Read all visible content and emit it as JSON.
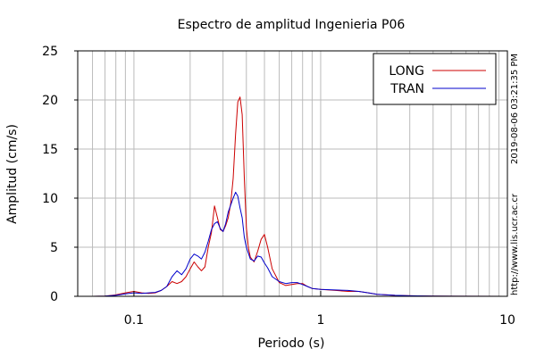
{
  "chart_data": {
    "type": "line",
    "title": "Espectro de amplitud Ingenieria P06",
    "xlabel": "Periodo (s)",
    "ylabel": "Amplitud (cm/s)",
    "x_scale": "log",
    "xlim": [
      0.05,
      10
    ],
    "ylim": [
      0,
      25
    ],
    "x_ticks": [
      {
        "value": 0.1,
        "label": "0.1"
      },
      {
        "value": 1,
        "label": "1"
      },
      {
        "value": 10,
        "label": "10"
      }
    ],
    "y_ticks": [
      {
        "value": 0,
        "label": "0"
      },
      {
        "value": 5,
        "label": "5"
      },
      {
        "value": 10,
        "label": "10"
      },
      {
        "value": 15,
        "label": "15"
      },
      {
        "value": 20,
        "label": "20"
      },
      {
        "value": 25,
        "label": "25"
      }
    ],
    "grid": true,
    "legend_position": "top-right",
    "series": [
      {
        "name": "LONG",
        "color": "#cc0000",
        "points": [
          [
            0.05,
            0
          ],
          [
            0.06,
            0
          ],
          [
            0.07,
            0.02
          ],
          [
            0.08,
            0.15
          ],
          [
            0.09,
            0.35
          ],
          [
            0.1,
            0.5
          ],
          [
            0.11,
            0.35
          ],
          [
            0.12,
            0.3
          ],
          [
            0.13,
            0.35
          ],
          [
            0.14,
            0.6
          ],
          [
            0.15,
            1.0
          ],
          [
            0.16,
            1.5
          ],
          [
            0.17,
            1.3
          ],
          [
            0.18,
            1.5
          ],
          [
            0.19,
            2.0
          ],
          [
            0.2,
            2.8
          ],
          [
            0.21,
            3.5
          ],
          [
            0.22,
            3.0
          ],
          [
            0.23,
            2.6
          ],
          [
            0.24,
            3.0
          ],
          [
            0.25,
            5.0
          ],
          [
            0.26,
            6.5
          ],
          [
            0.27,
            9.2
          ],
          [
            0.28,
            8.0
          ],
          [
            0.29,
            6.8
          ],
          [
            0.3,
            6.6
          ],
          [
            0.31,
            7.2
          ],
          [
            0.32,
            8.0
          ],
          [
            0.33,
            9.5
          ],
          [
            0.34,
            12.0
          ],
          [
            0.35,
            16.5
          ],
          [
            0.36,
            19.8
          ],
          [
            0.37,
            20.3
          ],
          [
            0.38,
            18.5
          ],
          [
            0.39,
            12.0
          ],
          [
            0.4,
            7.0
          ],
          [
            0.41,
            5.0
          ],
          [
            0.42,
            4.0
          ],
          [
            0.44,
            3.5
          ],
          [
            0.46,
            4.6
          ],
          [
            0.48,
            5.8
          ],
          [
            0.5,
            6.3
          ],
          [
            0.52,
            5.0
          ],
          [
            0.55,
            2.8
          ],
          [
            0.6,
            1.4
          ],
          [
            0.65,
            1.1
          ],
          [
            0.7,
            1.2
          ],
          [
            0.75,
            1.3
          ],
          [
            0.8,
            1.3
          ],
          [
            0.85,
            1.0
          ],
          [
            0.9,
            0.8
          ],
          [
            1.0,
            0.7
          ],
          [
            1.2,
            0.6
          ],
          [
            1.4,
            0.5
          ],
          [
            1.6,
            0.5
          ],
          [
            1.8,
            0.35
          ],
          [
            2.0,
            0.2
          ],
          [
            2.5,
            0.1
          ],
          [
            3,
            0.05
          ],
          [
            4,
            0.02
          ],
          [
            10,
            0
          ]
        ]
      },
      {
        "name": "TRAN",
        "color": "#0000cc",
        "points": [
          [
            0.05,
            0
          ],
          [
            0.06,
            0
          ],
          [
            0.07,
            0.02
          ],
          [
            0.08,
            0.1
          ],
          [
            0.09,
            0.25
          ],
          [
            0.1,
            0.35
          ],
          [
            0.11,
            0.3
          ],
          [
            0.12,
            0.35
          ],
          [
            0.13,
            0.4
          ],
          [
            0.14,
            0.6
          ],
          [
            0.15,
            1.0
          ],
          [
            0.16,
            2.0
          ],
          [
            0.17,
            2.6
          ],
          [
            0.18,
            2.2
          ],
          [
            0.19,
            2.8
          ],
          [
            0.2,
            3.8
          ],
          [
            0.21,
            4.3
          ],
          [
            0.22,
            4.1
          ],
          [
            0.23,
            3.8
          ],
          [
            0.24,
            4.5
          ],
          [
            0.25,
            5.6
          ],
          [
            0.26,
            6.8
          ],
          [
            0.27,
            7.4
          ],
          [
            0.28,
            7.6
          ],
          [
            0.29,
            6.9
          ],
          [
            0.3,
            6.6
          ],
          [
            0.31,
            7.4
          ],
          [
            0.32,
            8.6
          ],
          [
            0.33,
            9.3
          ],
          [
            0.34,
            10.0
          ],
          [
            0.35,
            10.6
          ],
          [
            0.36,
            10.2
          ],
          [
            0.37,
            9.0
          ],
          [
            0.38,
            8.0
          ],
          [
            0.39,
            6.0
          ],
          [
            0.4,
            5.0
          ],
          [
            0.42,
            3.8
          ],
          [
            0.44,
            3.6
          ],
          [
            0.46,
            4.1
          ],
          [
            0.48,
            4.0
          ],
          [
            0.5,
            3.4
          ],
          [
            0.52,
            2.9
          ],
          [
            0.55,
            2.0
          ],
          [
            0.6,
            1.5
          ],
          [
            0.65,
            1.3
          ],
          [
            0.7,
            1.4
          ],
          [
            0.75,
            1.4
          ],
          [
            0.8,
            1.2
          ],
          [
            0.85,
            1.0
          ],
          [
            0.9,
            0.8
          ],
          [
            1.0,
            0.7
          ],
          [
            1.2,
            0.65
          ],
          [
            1.4,
            0.6
          ],
          [
            1.6,
            0.5
          ],
          [
            1.8,
            0.35
          ],
          [
            2.0,
            0.2
          ],
          [
            2.5,
            0.1
          ],
          [
            3,
            0.05
          ],
          [
            4,
            0.02
          ],
          [
            10,
            0
          ]
        ]
      }
    ]
  },
  "side_texts": {
    "timestamp": "2019-08-06 03:21:35 PM",
    "url": "http://www.lis.ucr.ac.cr"
  }
}
